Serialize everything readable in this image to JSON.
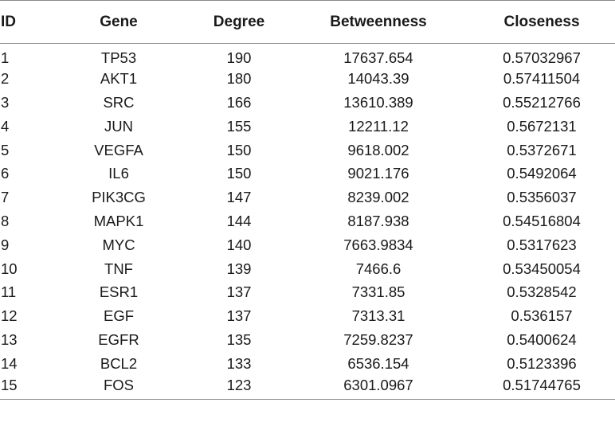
{
  "table": {
    "headers": [
      "ID",
      "Gene",
      "Degree",
      "Betweenness",
      "Closeness"
    ],
    "rows": [
      [
        "1",
        "TP53",
        "190",
        "17637.654",
        "0.57032967"
      ],
      [
        "2",
        "AKT1",
        "180",
        "14043.39",
        "0.57411504"
      ],
      [
        "3",
        "SRC",
        "166",
        "13610.389",
        "0.55212766"
      ],
      [
        "4",
        "JUN",
        "155",
        "12211.12",
        "0.5672131"
      ],
      [
        "5",
        "VEGFA",
        "150",
        "9618.002",
        "0.5372671"
      ],
      [
        "6",
        "IL6",
        "150",
        "9021.176",
        "0.5492064"
      ],
      [
        "7",
        "PIK3CG",
        "147",
        "8239.002",
        "0.5356037"
      ],
      [
        "8",
        "MAPK1",
        "144",
        "8187.938",
        "0.54516804"
      ],
      [
        "9",
        "MYC",
        "140",
        "7663.9834",
        "0.5317623"
      ],
      [
        "10",
        "TNF",
        "139",
        "7466.6",
        "0.53450054"
      ],
      [
        "11",
        "ESR1",
        "137",
        "7331.85",
        "0.5328542"
      ],
      [
        "12",
        "EGF",
        "137",
        "7313.31",
        "0.536157"
      ],
      [
        "13",
        "EGFR",
        "135",
        "7259.8237",
        "0.5400624"
      ],
      [
        "14",
        "BCL2",
        "133",
        "6536.154",
        "0.5123396"
      ],
      [
        "15",
        "FOS",
        "123",
        "6301.0967",
        "0.51744765"
      ]
    ]
  },
  "colors": {
    "rule": "#8a8a8a",
    "text": "#1a1a1a",
    "background": "#ffffff"
  }
}
